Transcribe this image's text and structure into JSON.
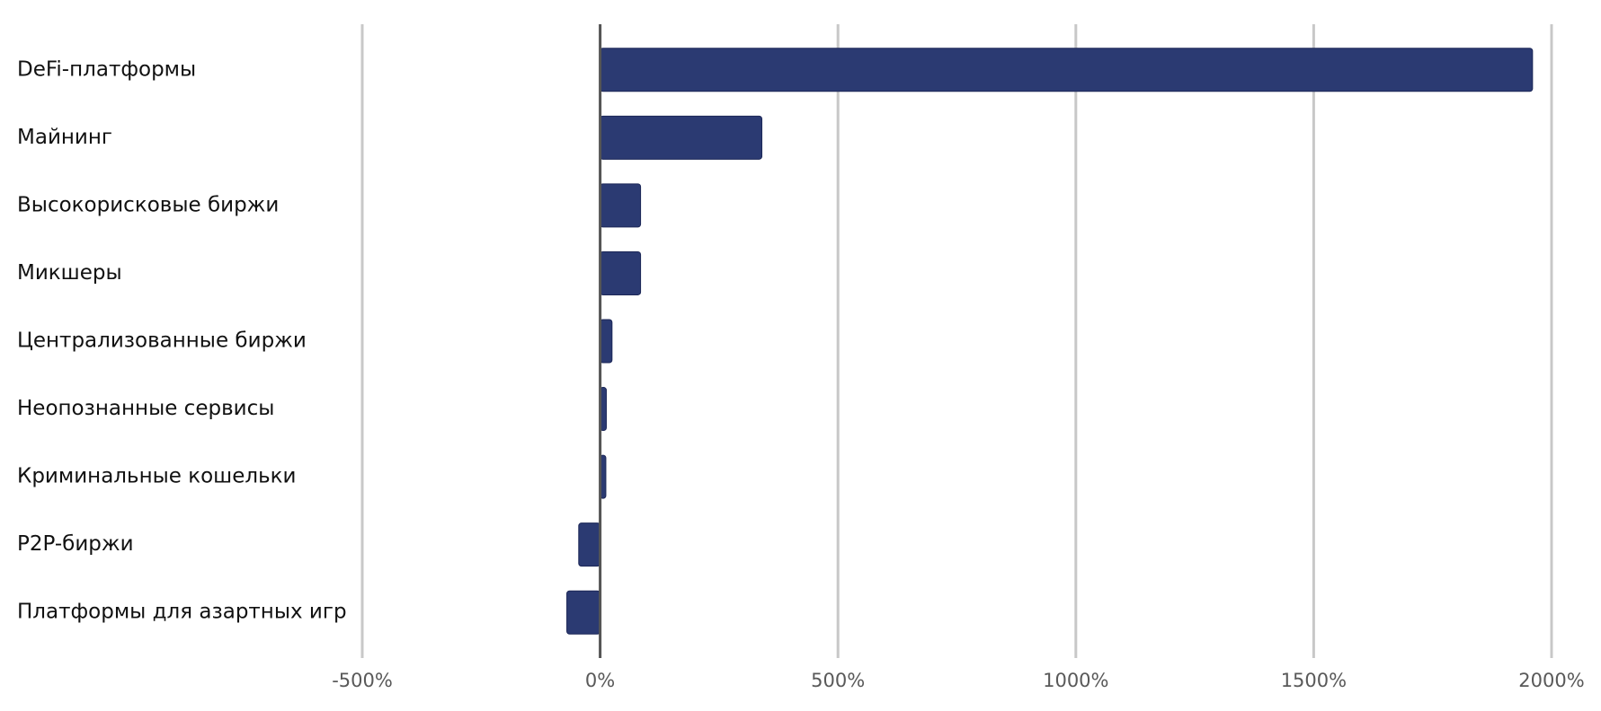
{
  "chart_data": {
    "type": "bar",
    "orientation": "horizontal",
    "categories": [
      "DeFi-платформы",
      "Майнинг",
      "Высокорисковые биржи",
      "Микшеры",
      "Централизованные биржи",
      "Неопознанные сервисы",
      "Криминальные кошельки",
      "P2P-биржи",
      "Платформы для азартных игр"
    ],
    "values": [
      1960,
      340,
      85,
      85,
      25,
      13,
      12,
      -45,
      -70
    ],
    "color": "#2b3a72",
    "xlim": [
      -500,
      2000
    ],
    "xticks": [
      {
        "value": -500,
        "label": "-500%"
      },
      {
        "value": 0,
        "label": "0%"
      },
      {
        "value": 500,
        "label": "500%"
      },
      {
        "value": 1000,
        "label": "1000%"
      },
      {
        "value": 1500,
        "label": "1500%"
      },
      {
        "value": 2000,
        "label": "2000%"
      }
    ],
    "grid": true
  }
}
